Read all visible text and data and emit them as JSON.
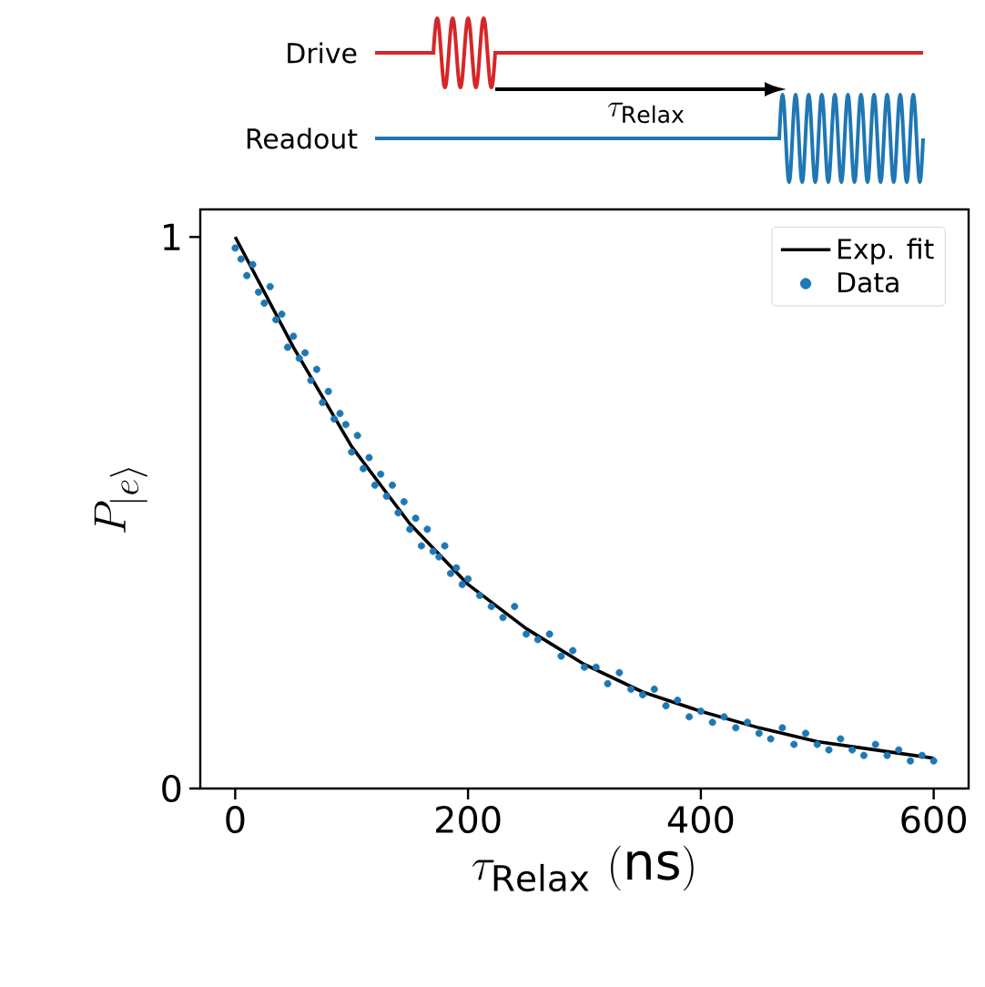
{
  "chart_data": {
    "type": "scatter",
    "xlabel": "\\tau_{\\mathrm{Relax}}\\ (\\mathrm{ns})",
    "ylabel": "P_{|e\\rangle}",
    "annotations": [
      "Drive",
      "Readout",
      "\\tau_{\\mathrm{Relax}}"
    ],
    "xlim": [
      -30,
      630
    ],
    "ylim": [
      0,
      1.05
    ],
    "xticks": [
      0,
      200,
      400,
      600
    ],
    "yticks": [
      0,
      1
    ],
    "legend": "top right",
    "series": [
      {
        "name": "Exp. fit",
        "type": "line",
        "marker": "none",
        "color": "#000000",
        "x": [
          0,
          50,
          100,
          150,
          200,
          250,
          300,
          350,
          400,
          450,
          500,
          550,
          600
        ],
        "values": [
          1.0,
          0.8,
          0.62,
          0.48,
          0.37,
          0.29,
          0.225,
          0.175,
          0.14,
          0.11,
          0.085,
          0.07,
          0.055
        ]
      },
      {
        "name": "Data",
        "marker": "circle",
        "color": "#1f77b4",
        "x": [
          0,
          5,
          10,
          15,
          20,
          25,
          30,
          35,
          40,
          45,
          50,
          55,
          60,
          65,
          70,
          75,
          80,
          85,
          90,
          95,
          100,
          105,
          110,
          115,
          120,
          125,
          130,
          135,
          140,
          145,
          150,
          155,
          160,
          165,
          170,
          175,
          180,
          185,
          190,
          195,
          200,
          210,
          220,
          230,
          240,
          250,
          260,
          270,
          280,
          290,
          300,
          310,
          320,
          330,
          340,
          350,
          360,
          370,
          380,
          390,
          400,
          410,
          420,
          430,
          440,
          450,
          460,
          470,
          480,
          490,
          500,
          510,
          520,
          530,
          540,
          550,
          560,
          570,
          580,
          590,
          600
        ],
        "values": [
          0.98,
          0.96,
          0.93,
          0.95,
          0.9,
          0.88,
          0.91,
          0.85,
          0.86,
          0.8,
          0.82,
          0.78,
          0.79,
          0.74,
          0.76,
          0.7,
          0.72,
          0.67,
          0.68,
          0.66,
          0.61,
          0.64,
          0.58,
          0.6,
          0.55,
          0.57,
          0.53,
          0.55,
          0.5,
          0.52,
          0.47,
          0.49,
          0.44,
          0.47,
          0.43,
          0.42,
          0.44,
          0.39,
          0.4,
          0.37,
          0.38,
          0.35,
          0.33,
          0.31,
          0.33,
          0.28,
          0.27,
          0.28,
          0.24,
          0.25,
          0.22,
          0.22,
          0.19,
          0.21,
          0.18,
          0.17,
          0.18,
          0.15,
          0.16,
          0.13,
          0.14,
          0.12,
          0.13,
          0.11,
          0.12,
          0.1,
          0.09,
          0.11,
          0.08,
          0.1,
          0.08,
          0.07,
          0.09,
          0.07,
          0.06,
          0.08,
          0.06,
          0.07,
          0.05,
          0.06,
          0.05
        ]
      }
    ]
  }
}
